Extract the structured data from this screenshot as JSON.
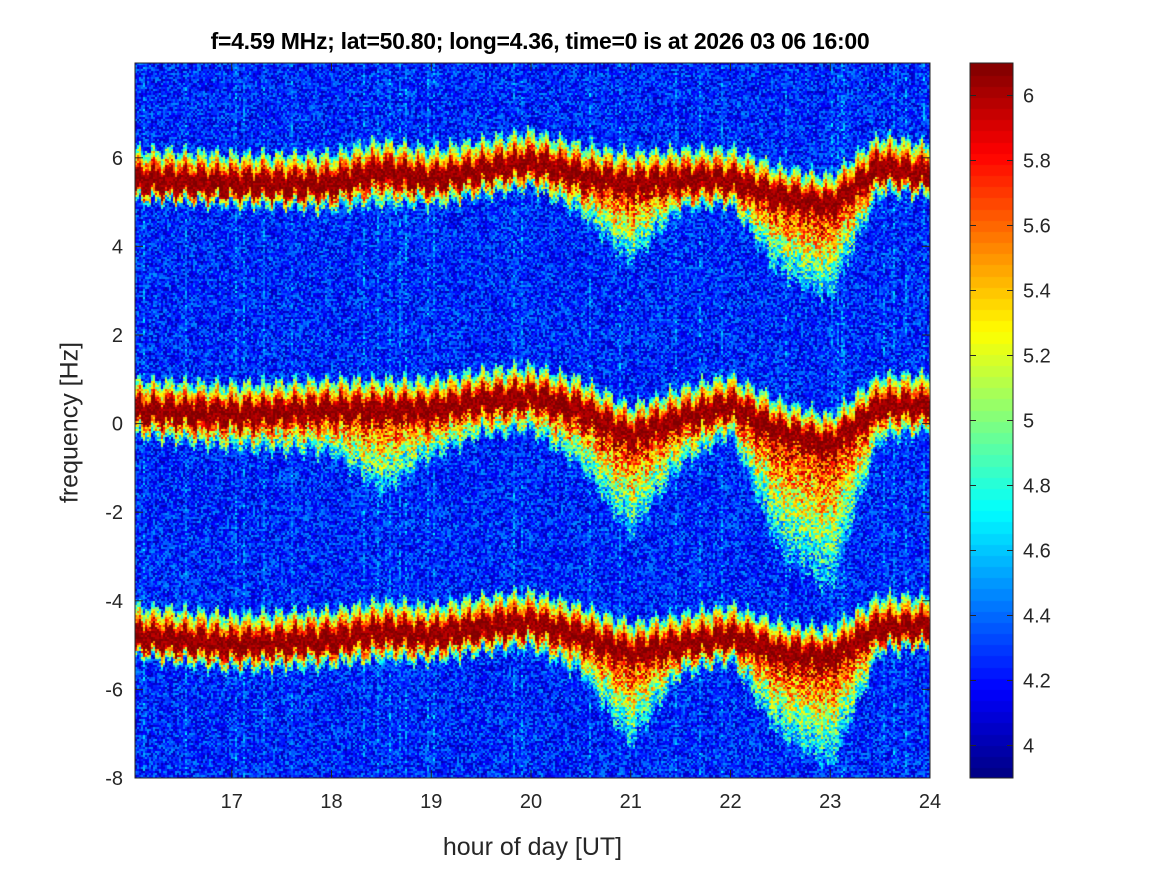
{
  "chart_data": {
    "type": "heatmap",
    "title": "f=4.59 MHz;  lat=50.80; long=4.36, time=0 is at 2026 03 06 16:00",
    "xlabel": "hour of day [UT]",
    "ylabel": "frequency [Hz]",
    "xlim": [
      16.03,
      24.0
    ],
    "ylim": [
      -8,
      8.14
    ],
    "xticks": [
      "17",
      "18",
      "19",
      "20",
      "21",
      "22",
      "23",
      "24"
    ],
    "xtick_values": [
      17,
      18,
      19,
      20,
      21,
      22,
      23,
      24
    ],
    "yticks": [
      "-8",
      "-6",
      "-4",
      "-2",
      "0",
      "2",
      "4",
      "6"
    ],
    "ytick_values": [
      -8,
      -6,
      -4,
      -2,
      0,
      2,
      4,
      6
    ],
    "colormap": "jet",
    "clim": [
      3.9,
      6.1
    ],
    "colorbar_ticks": [
      "4",
      "4.2",
      "4.4",
      "4.6",
      "4.8",
      "5",
      "5.2",
      "5.4",
      "5.6",
      "5.8",
      "6"
    ],
    "colorbar_tick_values": [
      4,
      4.2,
      4.4,
      4.6,
      4.8,
      5,
      5.2,
      5.4,
      5.6,
      5.8,
      6
    ],
    "ridge_hours": [
      16.0,
      17.0,
      18.0,
      18.5,
      19.0,
      19.5,
      20.0,
      20.5,
      21.0,
      21.5,
      22.0,
      22.5,
      23.0,
      23.5,
      24.0
    ],
    "series": [
      {
        "name": "upper trace",
        "values": [
          5.5,
          5.4,
          5.4,
          5.7,
          5.5,
          5.7,
          5.9,
          5.6,
          5.4,
          5.5,
          5.5,
          5.1,
          4.9,
          5.8,
          5.6
        ],
        "spread_below": [
          0.2,
          0.2,
          0.3,
          0.5,
          0.3,
          0.3,
          0.3,
          0.6,
          1.5,
          0.4,
          0.3,
          1.5,
          1.8,
          0.3,
          0.2
        ]
      },
      {
        "name": "central trace",
        "values": [
          0.3,
          0.2,
          0.3,
          0.3,
          0.3,
          0.5,
          0.6,
          0.3,
          -0.3,
          0.1,
          0.4,
          -0.2,
          -0.5,
          0.4,
          0.4
        ],
        "spread_below": [
          0.3,
          0.5,
          0.7,
          1.6,
          0.8,
          0.5,
          0.5,
          1.0,
          2.0,
          0.8,
          0.4,
          2.5,
          3.0,
          0.5,
          0.3
        ]
      },
      {
        "name": "lower trace",
        "values": [
          -4.8,
          -5.0,
          -4.9,
          -4.7,
          -4.8,
          -4.6,
          -4.5,
          -4.8,
          -5.2,
          -5.0,
          -4.8,
          -5.2,
          -5.3,
          -4.6,
          -4.6
        ],
        "spread_below": [
          0.2,
          0.3,
          0.3,
          0.4,
          0.3,
          0.3,
          0.3,
          0.6,
          1.8,
          0.4,
          0.3,
          1.6,
          2.2,
          0.3,
          0.2
        ]
      }
    ]
  }
}
